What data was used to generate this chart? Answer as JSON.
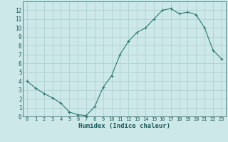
{
  "x": [
    0,
    1,
    2,
    3,
    4,
    5,
    6,
    7,
    8,
    9,
    10,
    11,
    12,
    13,
    14,
    15,
    16,
    17,
    18,
    19,
    20,
    21,
    22,
    23
  ],
  "y": [
    4.0,
    3.2,
    2.6,
    2.1,
    1.5,
    0.5,
    0.2,
    0.1,
    1.1,
    3.3,
    4.6,
    7.0,
    8.5,
    9.5,
    10.0,
    11.0,
    12.0,
    12.2,
    11.6,
    11.8,
    11.5,
    10.0,
    7.5,
    6.5
  ],
  "xlabel": "Humidex (Indice chaleur)",
  "line_color": "#2a7a6f",
  "marker": "+",
  "marker_size": 3,
  "marker_lw": 0.8,
  "line_width": 0.8,
  "bg_color": "#cde8e8",
  "grid_color": "#aacece",
  "tick_color": "#1a5a5a",
  "xlabel_color": "#1a5a5a",
  "xlim": [
    -0.5,
    23.5
  ],
  "ylim": [
    0,
    13
  ],
  "xticks": [
    0,
    1,
    2,
    3,
    4,
    5,
    6,
    7,
    8,
    9,
    10,
    11,
    12,
    13,
    14,
    15,
    16,
    17,
    18,
    19,
    20,
    21,
    22,
    23
  ],
  "yticks": [
    0,
    1,
    2,
    3,
    4,
    5,
    6,
    7,
    8,
    9,
    10,
    11,
    12
  ],
  "xtick_fontsize": 5.0,
  "ytick_fontsize": 5.5,
  "xlabel_fontsize": 6.5
}
